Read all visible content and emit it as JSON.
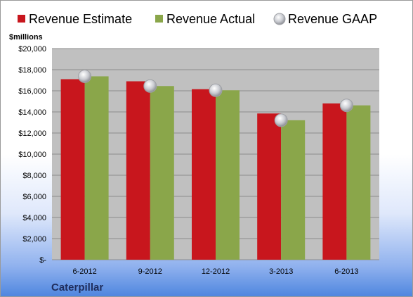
{
  "chart_data": {
    "type": "bar",
    "categories": [
      "6-2012",
      "9-2012",
      "12-2012",
      "3-2013",
      "6-2013"
    ],
    "series": [
      {
        "name": "Revenue Estimate",
        "type": "bar",
        "color": "#c8161d",
        "values": [
          17100,
          16900,
          16150,
          13850,
          14800
        ]
      },
      {
        "name": "Revenue Actual",
        "type": "bar",
        "color": "#8aa64a",
        "values": [
          17370,
          16450,
          16050,
          13210,
          14620
        ]
      },
      {
        "name": "Revenue GAAP",
        "type": "marker",
        "color": "#c9cbd1",
        "values": [
          17370,
          16450,
          16050,
          13210,
          14620
        ]
      }
    ],
    "ylabel": "$millions",
    "ylim": [
      0,
      20000
    ],
    "yticks": [
      0,
      2000,
      4000,
      6000,
      8000,
      10000,
      12000,
      14000,
      16000,
      18000,
      20000
    ],
    "ytick_labels": [
      "$-",
      "$2,000",
      "$4,000",
      "$6,000",
      "$8,000",
      "$10,000",
      "$12,000",
      "$14,000",
      "$16,000",
      "$18,000",
      "$20,000"
    ],
    "grid": true,
    "legend_position": "top",
    "plot_background": "#c0c0c0",
    "company": "Caterpillar"
  }
}
